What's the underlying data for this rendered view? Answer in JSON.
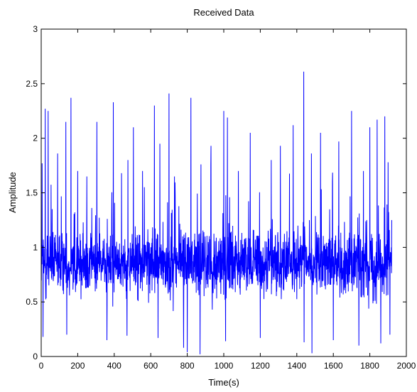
{
  "chart_data": {
    "type": "line",
    "title": "Received Data",
    "xlabel": "Time(s)",
    "ylabel": "Amplitude",
    "xlim": [
      0,
      2000
    ],
    "ylim": [
      0,
      3
    ],
    "xticks": [
      0,
      200,
      400,
      600,
      800,
      1000,
      1200,
      1400,
      1600,
      1800,
      2000
    ],
    "xtick_labels": [
      "0",
      "200",
      "400",
      "600",
      "800",
      "1000",
      "1200",
      "1400",
      "1600",
      "1800",
      "2000"
    ],
    "yticks": [
      0,
      0.5,
      1,
      1.5,
      2,
      2.5,
      3
    ],
    "ytick_labels": [
      "0",
      "0.5",
      "1",
      "1.5",
      "2",
      "2.5",
      "3"
    ],
    "grid": false,
    "legend": "none",
    "colors": {
      "series": "#0000ff",
      "axes": "#000000",
      "background": "#ffffff"
    },
    "series": [
      {
        "x_start": 1,
        "x_step": 1,
        "count": 1920,
        "peaks": [
          {
            "x": 5,
            "y": 1.77
          },
          {
            "x": 22,
            "y": 2.27
          },
          {
            "x": 38,
            "y": 2.25
          },
          {
            "x": 60,
            "y": 1.35
          },
          {
            "x": 90,
            "y": 1.86
          },
          {
            "x": 135,
            "y": 2.15
          },
          {
            "x": 163,
            "y": 2.37
          },
          {
            "x": 200,
            "y": 1.7
          },
          {
            "x": 250,
            "y": 1.65
          },
          {
            "x": 305,
            "y": 2.15
          },
          {
            "x": 360,
            "y": 1.75
          },
          {
            "x": 395,
            "y": 2.33
          },
          {
            "x": 440,
            "y": 1.68
          },
          {
            "x": 475,
            "y": 1.8
          },
          {
            "x": 505,
            "y": 2.1
          },
          {
            "x": 555,
            "y": 1.7
          },
          {
            "x": 620,
            "y": 2.3
          },
          {
            "x": 650,
            "y": 1.95
          },
          {
            "x": 700,
            "y": 2.41
          },
          {
            "x": 730,
            "y": 1.65
          },
          {
            "x": 780,
            "y": 1.98
          },
          {
            "x": 820,
            "y": 2.37
          },
          {
            "x": 875,
            "y": 1.76
          },
          {
            "x": 930,
            "y": 1.93
          },
          {
            "x": 1000,
            "y": 2.25
          },
          {
            "x": 1020,
            "y": 2.19
          },
          {
            "x": 1080,
            "y": 1.7
          },
          {
            "x": 1145,
            "y": 2.05
          },
          {
            "x": 1200,
            "y": 2.37
          },
          {
            "x": 1260,
            "y": 1.8
          },
          {
            "x": 1310,
            "y": 1.93
          },
          {
            "x": 1380,
            "y": 2.12
          },
          {
            "x": 1438,
            "y": 2.61
          },
          {
            "x": 1480,
            "y": 1.86
          },
          {
            "x": 1530,
            "y": 2.05
          },
          {
            "x": 1595,
            "y": 1.6
          },
          {
            "x": 1630,
            "y": 1.97
          },
          {
            "x": 1700,
            "y": 2.25
          },
          {
            "x": 1765,
            "y": 1.7
          },
          {
            "x": 1800,
            "y": 2.1
          },
          {
            "x": 1840,
            "y": 2.17
          },
          {
            "x": 1882,
            "y": 2.2
          },
          {
            "x": 1900,
            "y": 1.78
          }
        ],
        "troughs": [
          {
            "x": 10,
            "y": 0.18
          },
          {
            "x": 140,
            "y": 0.2
          },
          {
            "x": 360,
            "y": 0.15
          },
          {
            "x": 470,
            "y": 0.19
          },
          {
            "x": 640,
            "y": 0.17
          },
          {
            "x": 780,
            "y": 0.08
          },
          {
            "x": 800,
            "y": 0.04
          },
          {
            "x": 870,
            "y": 0.02
          },
          {
            "x": 1010,
            "y": 0.14
          },
          {
            "x": 1200,
            "y": 0.17
          },
          {
            "x": 1440,
            "y": 0.13
          },
          {
            "x": 1483,
            "y": 0.03
          },
          {
            "x": 1600,
            "y": 0.15
          },
          {
            "x": 1740,
            "y": 0.1
          },
          {
            "x": 1860,
            "y": 0.12
          },
          {
            "x": 1910,
            "y": 0.2
          }
        ],
        "baseline_mean": 0.85,
        "baseline_spread": 0.3
      }
    ]
  }
}
